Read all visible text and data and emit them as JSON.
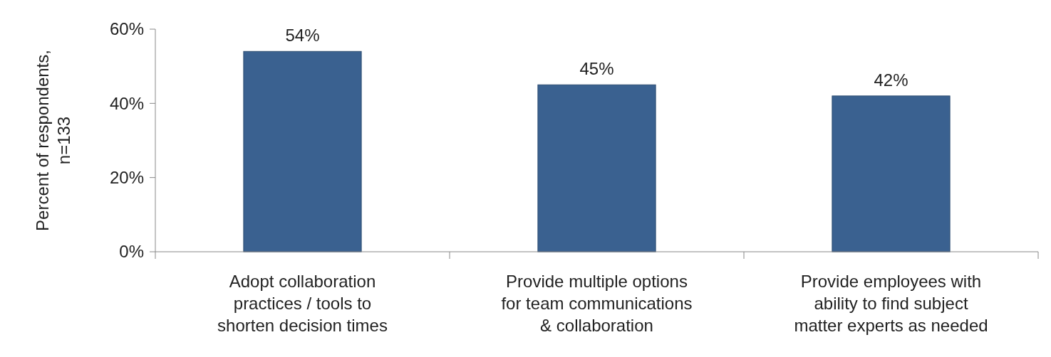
{
  "chart_data": {
    "type": "bar",
    "ylabel": "Percent of respondents, n=133",
    "categories": [
      "Adopt collaboration practices / tools to shorten decision times",
      "Provide multiple options for team communications & collaboration",
      "Provide employees with ability to find subject matter experts as needed"
    ],
    "values": [
      54,
      45,
      42
    ],
    "color": "#3a6190",
    "ylim": [
      0,
      60
    ],
    "yticks": [
      {
        "value": 0,
        "label": "0%"
      },
      {
        "value": 20,
        "label": "20%"
      },
      {
        "value": 40,
        "label": "40%"
      },
      {
        "value": 60,
        "label": "60%"
      }
    ],
    "value_labels": [
      "54%",
      "45%",
      "42%"
    ],
    "grid": false
  }
}
